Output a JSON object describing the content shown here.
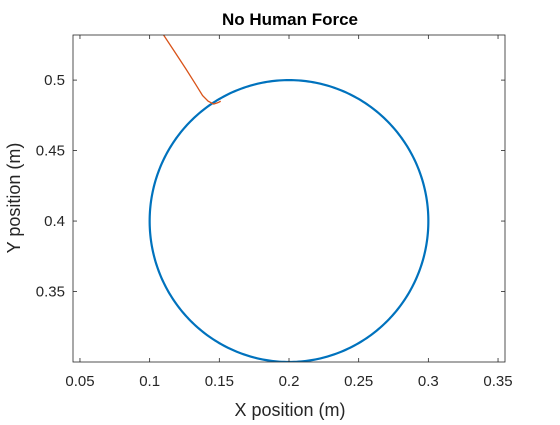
{
  "chart_data": {
    "type": "line",
    "title": "No Human Force",
    "xlabel": "X position (m)",
    "ylabel": "Y position (m)",
    "xlim": [
      0.045,
      0.355
    ],
    "ylim": [
      0.3,
      0.532
    ],
    "xticks": [
      0.05,
      0.1,
      0.15,
      0.2,
      0.25,
      0.3,
      0.35
    ],
    "yticks": [
      0.35,
      0.4,
      0.45,
      0.5
    ],
    "xtick_labels": [
      "0.05",
      "0.1",
      "0.15",
      "0.2",
      "0.25",
      "0.3",
      "0.35"
    ],
    "ytick_labels": [
      "0.35",
      "0.4",
      "0.45",
      "0.5"
    ],
    "grid": false,
    "box": true,
    "series": [
      {
        "kind": "circle",
        "color": "#0072BD",
        "center": [
          0.2,
          0.4
        ],
        "radius": 0.1
      },
      {
        "kind": "path",
        "color": "#D95319",
        "x": [
          0.11,
          0.118,
          0.126,
          0.133,
          0.138,
          0.142,
          0.146,
          0.149,
          0.151
        ],
        "y": [
          0.532,
          0.52,
          0.508,
          0.497,
          0.489,
          0.485,
          0.483,
          0.484,
          0.485
        ]
      }
    ]
  }
}
